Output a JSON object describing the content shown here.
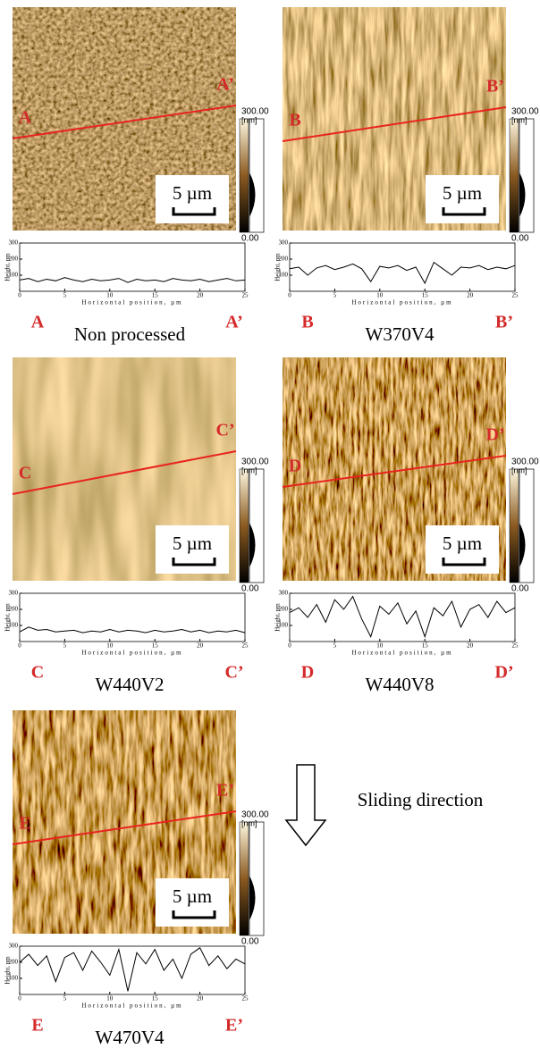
{
  "chart_data": [
    {
      "type": "line",
      "title": "Non processed",
      "section_start": "A",
      "section_end": "A’",
      "ylabel": "Height, nm",
      "xlabel": "Horizontal position,  µm",
      "scale_bar": "5 µm",
      "colorbar": {
        "max": "300.00",
        "unit": "[nm]",
        "min": "0.00"
      },
      "color": "#000000",
      "x": [
        0,
        1,
        2,
        3,
        4,
        5,
        6,
        7,
        8,
        9,
        10,
        11,
        12,
        13,
        14,
        15,
        16,
        17,
        18,
        19,
        20,
        21,
        22,
        23,
        24,
        25
      ],
      "values": [
        70,
        80,
        60,
        75,
        65,
        85,
        70,
        60,
        75,
        65,
        70,
        80,
        55,
        75,
        65,
        70,
        60,
        80,
        70,
        65,
        75,
        60,
        70,
        80,
        65,
        70
      ],
      "xlim": [
        0,
        25
      ],
      "ylim": [
        0,
        300
      ],
      "xticks": [
        0,
        5,
        10,
        15,
        20,
        25
      ],
      "yticks": [
        100,
        200,
        300
      ]
    },
    {
      "type": "line",
      "title": "W370V4",
      "section_start": "B",
      "section_end": "B’",
      "ylabel": "Height, nm",
      "xlabel": "Horizontal position,  µm",
      "scale_bar": "5 µm",
      "colorbar": {
        "max": "300.00",
        "unit": "[nm]",
        "min": "0.00"
      },
      "color": "#000000",
      "x": [
        0,
        1,
        2,
        3,
        4,
        5,
        6,
        7,
        8,
        9,
        10,
        11,
        12,
        13,
        14,
        15,
        16,
        17,
        18,
        19,
        20,
        21,
        22,
        23,
        24,
        25
      ],
      "values": [
        140,
        150,
        100,
        145,
        160,
        135,
        150,
        170,
        140,
        60,
        155,
        145,
        160,
        130,
        150,
        50,
        180,
        140,
        100,
        150,
        145,
        160,
        135,
        150,
        140,
        160
      ],
      "xlim": [
        0,
        25
      ],
      "ylim": [
        0,
        300
      ],
      "xticks": [
        0,
        5,
        10,
        15,
        20,
        25
      ],
      "yticks": [
        100,
        200,
        300
      ]
    },
    {
      "type": "line",
      "title": "W440V2",
      "section_start": "C",
      "section_end": "C’",
      "ylabel": "Height, nm",
      "xlabel": "Horizontal position,  µm",
      "scale_bar": "5 µm",
      "colorbar": {
        "max": "300.00",
        "unit": "[nm]",
        "min": "0.00"
      },
      "color": "#000000",
      "x": [
        0,
        1,
        2,
        3,
        4,
        5,
        6,
        7,
        8,
        9,
        10,
        11,
        12,
        13,
        14,
        15,
        16,
        17,
        18,
        19,
        20,
        21,
        22,
        23,
        24,
        25
      ],
      "values": [
        60,
        90,
        70,
        75,
        60,
        65,
        70,
        55,
        65,
        60,
        75,
        60,
        70,
        65,
        55,
        70,
        60,
        65,
        75,
        60,
        70,
        55,
        65,
        60,
        70,
        55
      ],
      "xlim": [
        0,
        25
      ],
      "ylim": [
        0,
        300
      ],
      "xticks": [
        0,
        5,
        10,
        15,
        20,
        25
      ],
      "yticks": [
        100,
        200,
        300
      ]
    },
    {
      "type": "line",
      "title": "W440V8",
      "section_start": "D",
      "section_end": "D’",
      "ylabel": "Height, nm",
      "xlabel": "Horizontal position,  µm",
      "scale_bar": "5 µm",
      "colorbar": {
        "max": "300.00",
        "unit": "[nm]",
        "min": "0.00"
      },
      "color": "#000000",
      "x": [
        0,
        1,
        2,
        3,
        4,
        5,
        6,
        7,
        8,
        9,
        10,
        11,
        12,
        13,
        14,
        15,
        16,
        17,
        18,
        19,
        20,
        21,
        22,
        23,
        24,
        25
      ],
      "values": [
        180,
        210,
        150,
        230,
        120,
        260,
        200,
        280,
        140,
        30,
        220,
        170,
        240,
        110,
        190,
        30,
        210,
        160,
        250,
        90,
        200,
        230,
        150,
        250,
        180,
        210
      ],
      "xlim": [
        0,
        25
      ],
      "ylim": [
        0,
        300
      ],
      "xticks": [
        0,
        5,
        10,
        15,
        20,
        25
      ],
      "yticks": [
        100,
        200,
        300
      ]
    },
    {
      "type": "line",
      "title": "W470V4",
      "section_start": "E",
      "section_end": "E’",
      "ylabel": "Height, nm",
      "xlabel": "Horizontal position,  µm",
      "scale_bar": "5 µm",
      "colorbar": {
        "max": "300.00",
        "unit": "[nm]",
        "min": "0.00"
      },
      "color": "#000000",
      "x": [
        0,
        1,
        2,
        3,
        4,
        5,
        6,
        7,
        8,
        9,
        10,
        11,
        12,
        13,
        14,
        15,
        16,
        17,
        18,
        19,
        20,
        21,
        22,
        23,
        24,
        25
      ],
      "values": [
        200,
        250,
        180,
        240,
        80,
        230,
        260,
        150,
        270,
        200,
        120,
        280,
        20,
        260,
        190,
        280,
        150,
        220,
        100,
        250,
        290,
        180,
        240,
        160,
        220,
        190
      ],
      "xlim": [
        0,
        25
      ],
      "ylim": [
        0,
        300
      ],
      "xticks": [
        0,
        5,
        10,
        15,
        20,
        25
      ],
      "yticks": [
        100,
        200,
        300
      ]
    }
  ],
  "annotation": "Sliding direction"
}
